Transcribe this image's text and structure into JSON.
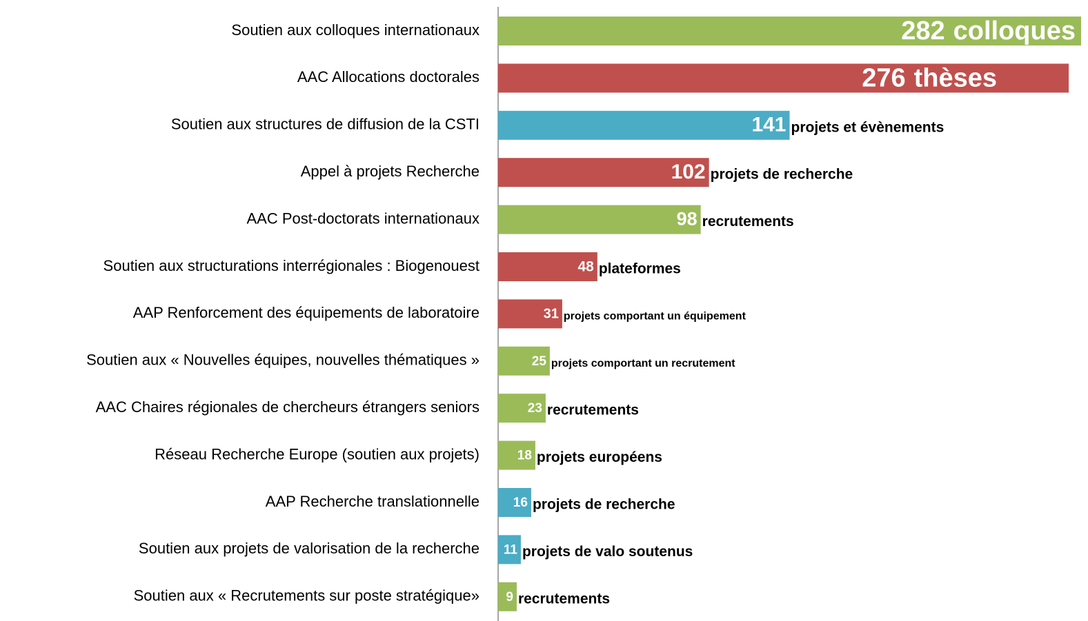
{
  "chart_data": {
    "type": "bar",
    "orientation": "horizontal",
    "categories": [
      "Soutien aux colloques internationaux",
      "AAC Allocations doctorales",
      "Soutien aux structures de diffusion de la CSTI",
      "Appel à projets Recherche",
      "AAC Post-doctorats internationaux",
      "Soutien aux structurations interrégionales : Biogenouest",
      "AAP Renforcement des équipements de laboratoire",
      "Soutien aux « Nouvelles équipes, nouvelles thématiques »",
      "AAC Chaires régionales de chercheurs étrangers seniors",
      "Réseau Recherche Europe (soutien aux projets)",
      "AAP Recherche translationnelle",
      "Soutien aux projets de valorisation de la recherche",
      "Soutien aux « Recrutements sur poste stratégique»"
    ],
    "values": [
      282,
      276,
      141,
      102,
      98,
      48,
      31,
      25,
      23,
      18,
      16,
      11,
      9
    ],
    "units": [
      "colloques",
      "thèses",
      "projets et évènements",
      "projets de recherche",
      "recrutements",
      "plateformes",
      "projets comportant un équipement",
      "projets comportant un recrutement",
      "recrutements",
      "projets européens",
      "projets de recherche",
      "projets de valo soutenus",
      "recrutements"
    ],
    "colors": [
      "#9bbb59",
      "#c0504d",
      "#4bacc6",
      "#c0504d",
      "#9bbb59",
      "#c0504d",
      "#c0504d",
      "#9bbb59",
      "#9bbb59",
      "#9bbb59",
      "#4bacc6",
      "#4bacc6",
      "#9bbb59"
    ],
    "xlim": [
      0,
      282
    ]
  }
}
